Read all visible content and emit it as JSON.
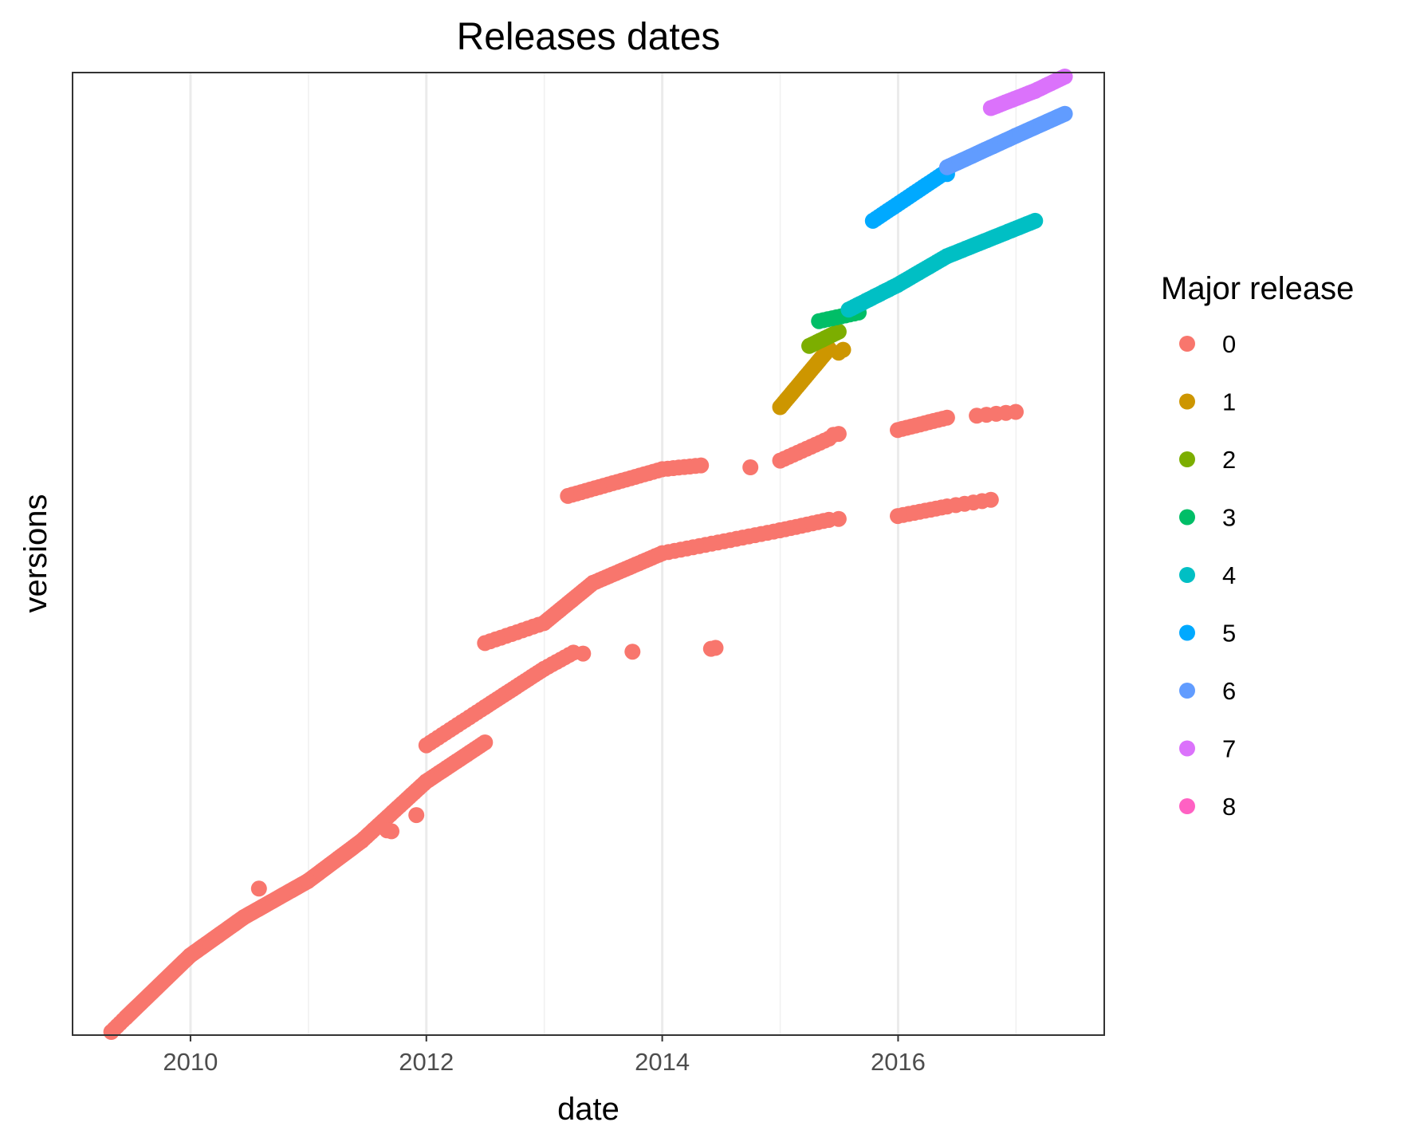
{
  "chart_data": {
    "type": "scatter",
    "title": "Releases dates",
    "xlabel": "date",
    "ylabel": "versions",
    "x_ticks": [
      "2010",
      "2012",
      "2014",
      "2016"
    ],
    "x_minor_ticks": [
      "2011",
      "2013",
      "2015",
      "2017"
    ],
    "xlim": [
      "2009-01-01",
      "2017-10-01"
    ],
    "y_scale": "categorical (version order), no tick labels",
    "ylim": [
      0,
      1000
    ],
    "grid": "vertical major and minor gridlines only",
    "legend": {
      "title": "Major release",
      "position": "right"
    },
    "series": [
      {
        "name": "0",
        "color": "#F8766D",
        "segments": [
          {
            "from": [
              "2009-05-01",
              0
            ],
            "to": [
              "2009-06-15",
              15
            ],
            "n": 6
          },
          {
            "from": [
              "2009-06-15",
              15
            ],
            "to": [
              "2009-12-31",
              80
            ],
            "n": 40
          },
          {
            "from": [
              "2009-12-31",
              80
            ],
            "to": [
              "2010-06-15",
              120
            ],
            "n": 34
          },
          {
            "from": [
              "2010-06-15",
              120
            ],
            "to": [
              "2010-12-31",
              158
            ],
            "n": 32
          },
          {
            "from": [
              "2010-12-31",
              158
            ],
            "to": [
              "2011-06-15",
              200
            ],
            "n": 26
          },
          {
            "from": [
              "2011-06-15",
              200
            ],
            "to": [
              "2011-12-31",
              262
            ],
            "n": 28
          },
          {
            "from": [
              "2011-12-31",
              262
            ],
            "to": [
              "2012-07-01",
              303
            ],
            "n": 24
          },
          {
            "from": [
              "2012-01-01",
              300
            ],
            "to": [
              "2012-07-01",
              340
            ],
            "n": 16
          },
          {
            "from": [
              "2012-07-01",
              340
            ],
            "to": [
              "2012-12-31",
              380
            ],
            "n": 20
          },
          {
            "from": [
              "2012-12-31",
              380
            ],
            "to": [
              "2013-04-01",
              397
            ],
            "n": 8
          },
          {
            "from": [
              "2012-07-01",
              407
            ],
            "to": [
              "2012-12-31",
              428
            ],
            "n": 12
          },
          {
            "from": [
              "2012-12-31",
              428
            ],
            "to": [
              "2013-06-01",
              470
            ],
            "n": 22
          },
          {
            "from": [
              "2013-06-01",
              470
            ],
            "to": [
              "2014-01-01",
              501
            ],
            "n": 22
          },
          {
            "from": [
              "2014-01-01",
              501
            ],
            "to": [
              "2014-12-31",
              525
            ],
            "n": 20
          },
          {
            "from": [
              "2014-12-31",
              525
            ],
            "to": [
              "2015-06-01",
              536
            ],
            "n": 10
          },
          {
            "from": [
              "2015-12-31",
              540
            ],
            "to": [
              "2016-06-01",
              550
            ],
            "n": 10
          },
          {
            "from": [
              "2016-06-01",
              550
            ],
            "to": [
              "2016-10-15",
              557
            ],
            "n": 6
          },
          {
            "from": [
              "2013-03-15",
              561
            ],
            "to": [
              "2014-01-01",
              589
            ],
            "n": 22
          },
          {
            "from": [
              "2014-01-01",
              589
            ],
            "to": [
              "2014-05-01",
              593
            ],
            "n": 8
          },
          {
            "from": [
              "2015-01-01",
              598
            ],
            "to": [
              "2015-06-01",
              621
            ],
            "n": 12
          },
          {
            "from": [
              "2015-12-31",
              630
            ],
            "to": [
              "2016-06-01",
              643
            ],
            "n": 12
          },
          {
            "from": [
              "2016-09-01",
              645
            ],
            "to": [
              "2016-12-31",
              649
            ],
            "n": 5
          }
        ],
        "points": [
          [
            "2011-12-01",
            227
          ],
          [
            "2011-09-15",
            210
          ],
          [
            "2011-09-01",
            211
          ],
          [
            "2010-12-31",
            158
          ],
          [
            "2010-08-01",
            150
          ],
          [
            "2013-05-01",
            396
          ],
          [
            "2013-10-01",
            398
          ],
          [
            "2014-06-01",
            401
          ],
          [
            "2014-06-15",
            402
          ],
          [
            "2015-06-01",
            536
          ],
          [
            "2015-07-01",
            537
          ],
          [
            "2014-10-01",
            591
          ],
          [
            "2015-06-15",
            625
          ],
          [
            "2015-07-01",
            626
          ]
        ]
      },
      {
        "name": "1",
        "color": "#CD9600",
        "segments": [
          {
            "from": [
              "2015-01-01",
              654
            ],
            "to": [
              "2015-06-01",
              715
            ],
            "n": 26
          }
        ],
        "points": [
          [
            "2015-07-01",
            711
          ],
          [
            "2015-07-15",
            714
          ]
        ]
      },
      {
        "name": "2",
        "color": "#7CAE00",
        "segments": [
          {
            "from": [
              "2015-04-01",
              718
            ],
            "to": [
              "2015-07-01",
              733
            ],
            "n": 12
          }
        ],
        "points": []
      },
      {
        "name": "3",
        "color": "#00BE67",
        "segments": [
          {
            "from": [
              "2015-05-01",
              744
            ],
            "to": [
              "2015-09-01",
              753
            ],
            "n": 10
          }
        ],
        "points": []
      },
      {
        "name": "4",
        "color": "#00BFC4",
        "segments": [
          {
            "from": [
              "2015-08-01",
              756
            ],
            "to": [
              "2015-12-31",
              782
            ],
            "n": 18
          },
          {
            "from": [
              "2015-12-31",
              782
            ],
            "to": [
              "2016-06-01",
              812
            ],
            "n": 20
          },
          {
            "from": [
              "2016-06-01",
              812
            ],
            "to": [
              "2017-03-01",
              849
            ],
            "n": 34
          }
        ],
        "points": []
      },
      {
        "name": "5",
        "color": "#00A9FF",
        "segments": [
          {
            "from": [
              "2015-10-15",
              849
            ],
            "to": [
              "2016-06-01",
              901
            ],
            "n": 26
          }
        ],
        "points": [
          [
            "2016-06-01",
            898
          ]
        ]
      },
      {
        "name": "6",
        "color": "#619CFF",
        "segments": [
          {
            "from": [
              "2016-06-01",
              905
            ],
            "to": [
              "2016-12-31",
              938
            ],
            "n": 28
          },
          {
            "from": [
              "2016-12-31",
              938
            ],
            "to": [
              "2017-06-01",
              961
            ],
            "n": 24
          }
        ],
        "points": []
      },
      {
        "name": "7",
        "color": "#DB72FB",
        "segments": [
          {
            "from": [
              "2016-10-15",
              967
            ],
            "to": [
              "2017-03-01",
              985
            ],
            "n": 16
          },
          {
            "from": [
              "2017-03-01",
              985
            ],
            "to": [
              "2017-06-01",
              1000
            ],
            "n": 12
          }
        ],
        "points": []
      },
      {
        "name": "8",
        "color": "#FF61C3",
        "segments": [],
        "points": []
      }
    ]
  }
}
